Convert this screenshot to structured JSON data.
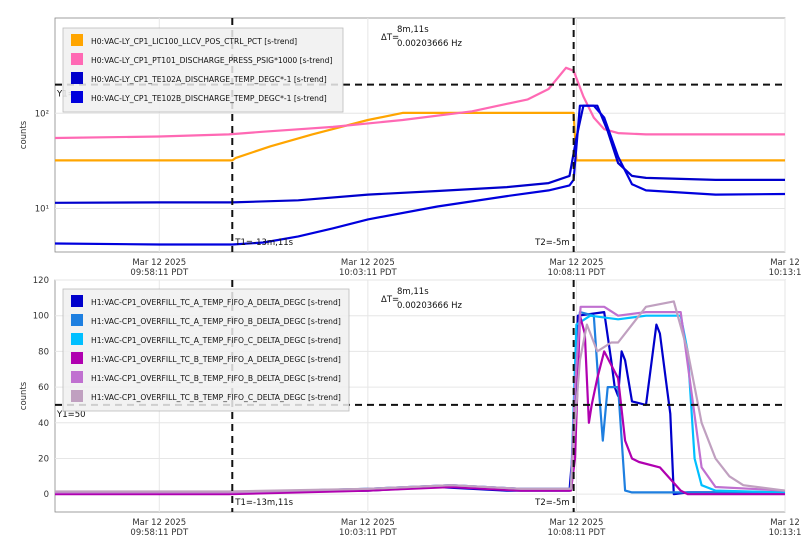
{
  "chart_data": [
    {
      "type": "line",
      "ylabel": "counts",
      "yscale": "log",
      "ylim": [
        3.5,
        1000
      ],
      "y_ticks": [
        {
          "value": 10,
          "label": "10¹"
        },
        {
          "value": 100,
          "label": "10²"
        }
      ],
      "x_ticks": [
        {
          "t": 0,
          "line1": "Mar 12 2025",
          "line2": "09:58:11 PDT"
        },
        {
          "t": 300,
          "line1": "Mar 12 2025",
          "line2": "10:03:11 PDT"
        },
        {
          "t": 600,
          "line1": "Mar 12 2025",
          "line2": "10:08:11 PDT"
        },
        {
          "t": 900,
          "line1": "Mar 12",
          "line2": "10:13:1"
        }
      ],
      "xlim": [
        -150,
        900
      ],
      "cursor_y": {
        "label": "Y1=",
        "value": 200
      },
      "cursor_t1": {
        "label": "T1=-13m,11s",
        "t": 105
      },
      "cursor_t2": {
        "label": "T2=-5m",
        "t": 596
      },
      "delta": {
        "label": "ΔT=",
        "line1": "8m,11s",
        "line2": "0.00203666 Hz"
      },
      "series": [
        {
          "name": "H0:VAC-LY_CP1_LIC100_LLCV_POS_CTRL_PCT [s-trend]",
          "color": "#ffa500",
          "points": [
            [
              -150,
              32
            ],
            [
              105,
              32
            ],
            [
              110,
              34
            ],
            [
              160,
              45
            ],
            [
              220,
              60
            ],
            [
              300,
              85
            ],
            [
              350,
              101
            ],
            [
              440,
              101
            ],
            [
              596,
              101
            ],
            [
              600,
              32
            ],
            [
              900,
              32
            ]
          ]
        },
        {
          "name": "H0:VAC-LY_CP1_PT101_DISCHARGE_PRESS_PSIG*1000 [s-trend]",
          "color": "#ff69b4",
          "points": [
            [
              -150,
              55
            ],
            [
              0,
              57
            ],
            [
              100,
              60
            ],
            [
              150,
              64
            ],
            [
              250,
              72
            ],
            [
              350,
              85
            ],
            [
              450,
              105
            ],
            [
              530,
              140
            ],
            [
              560,
              180
            ],
            [
              585,
              300
            ],
            [
              596,
              280
            ],
            [
              610,
              150
            ],
            [
              625,
              90
            ],
            [
              640,
              68
            ],
            [
              660,
              62
            ],
            [
              700,
              60
            ],
            [
              800,
              60
            ],
            [
              900,
              60
            ]
          ]
        },
        {
          "name": "H0:VAC-LY_CP1_TE102A_DISCHARGE_TEMP_DEGC*-1 [s-trend]",
          "color": "#0000cc",
          "points": [
            [
              -150,
              11.5
            ],
            [
              0,
              11.6
            ],
            [
              105,
              11.6
            ],
            [
              200,
              12.2
            ],
            [
              300,
              14
            ],
            [
              400,
              15.3
            ],
            [
              500,
              16.8
            ],
            [
              560,
              18.5
            ],
            [
              590,
              22
            ],
            [
              600,
              55
            ],
            [
              610,
              120
            ],
            [
              630,
              120
            ],
            [
              645,
              65
            ],
            [
              660,
              30
            ],
            [
              680,
              22
            ],
            [
              700,
              21
            ],
            [
              800,
              20
            ],
            [
              900,
              20
            ]
          ]
        },
        {
          "name": "H0:VAC-LY_CP1_TE102B_DISCHARGE_TEMP_DEGC*-1 [s-trend]",
          "color": "#0000dd",
          "points": [
            [
              -150,
              4.3
            ],
            [
              0,
              4.2
            ],
            [
              105,
              4.2
            ],
            [
              150,
              4.4
            ],
            [
              200,
              5.1
            ],
            [
              250,
              6.2
            ],
            [
              300,
              7.7
            ],
            [
              400,
              10.5
            ],
            [
              500,
              13.5
            ],
            [
              560,
              15.5
            ],
            [
              590,
              17.5
            ],
            [
              596,
              20
            ],
            [
              605,
              120
            ],
            [
              625,
              120
            ],
            [
              640,
              90
            ],
            [
              660,
              35
            ],
            [
              680,
              18
            ],
            [
              700,
              15.5
            ],
            [
              800,
              14
            ],
            [
              900,
              14.2
            ]
          ]
        }
      ]
    },
    {
      "type": "line",
      "ylabel": "counts",
      "ylim": [
        -10,
        120
      ],
      "y_ticks": [
        0,
        20,
        40,
        60,
        80,
        100,
        120
      ],
      "x_ticks": [
        {
          "t": 0,
          "line1": "Mar 12 2025",
          "line2": "09:58:11 PDT"
        },
        {
          "t": 300,
          "line1": "Mar 12 2025",
          "line2": "10:03:11 PDT"
        },
        {
          "t": 600,
          "line1": "Mar 12 2025",
          "line2": "10:08:11 PDT"
        },
        {
          "t": 900,
          "line1": "Mar 12",
          "line2": "10:13:1"
        }
      ],
      "xlim": [
        -150,
        900
      ],
      "cursor_y": {
        "label": "Y1=50",
        "value": 50
      },
      "cursor_t1": {
        "label": "T1=-13m,11s",
        "t": 105
      },
      "cursor_t2": {
        "label": "T2=-5m",
        "t": 596
      },
      "delta": {
        "label": "ΔT=",
        "line1": "8m,11s",
        "line2": "0.00203666 Hz"
      },
      "series": [
        {
          "name": "H1:VAC-CP1_OVERFILL_TC_A_TEMP_FIFO_A_DELTA_DEGC [s-trend]",
          "color": "#0000cc",
          "points": [
            [
              -150,
              1
            ],
            [
              100,
              1
            ],
            [
              300,
              2
            ],
            [
              400,
              4
            ],
            [
              500,
              2
            ],
            [
              590,
              2
            ],
            [
              598,
              40
            ],
            [
              602,
              100
            ],
            [
              640,
              102
            ],
            [
              650,
              75
            ],
            [
              655,
              60
            ],
            [
              660,
              55
            ],
            [
              665,
              80
            ],
            [
              670,
              75
            ],
            [
              680,
              52
            ],
            [
              700,
              50
            ],
            [
              715,
              95
            ],
            [
              720,
              90
            ],
            [
              730,
              60
            ],
            [
              735,
              45
            ],
            [
              740,
              0
            ],
            [
              760,
              1
            ],
            [
              900,
              1
            ]
          ]
        },
        {
          "name": "H1:VAC-CP1_OVERFILL_TC_A_TEMP_FIFO_B_DELTA_DEGC [s-trend]",
          "color": "#1e7fe0",
          "points": [
            [
              -150,
              1
            ],
            [
              100,
              1
            ],
            [
              300,
              3
            ],
            [
              420,
              5
            ],
            [
              520,
              3
            ],
            [
              592,
              3
            ],
            [
              598,
              60
            ],
            [
              605,
              102
            ],
            [
              625,
              100
            ],
            [
              632,
              60
            ],
            [
              638,
              30
            ],
            [
              645,
              60
            ],
            [
              660,
              60
            ],
            [
              670,
              2
            ],
            [
              680,
              1
            ],
            [
              900,
              1
            ]
          ]
        },
        {
          "name": "H1:VAC-CP1_OVERFILL_TC_A_TEMP_FIFO_C_DELTA_DEGC [s-trend]",
          "color": "#00bfff",
          "points": [
            [
              -150,
              1
            ],
            [
              100,
              1
            ],
            [
              300,
              3
            ],
            [
              420,
              5
            ],
            [
              520,
              3
            ],
            [
              592,
              3
            ],
            [
              600,
              95
            ],
            [
              620,
              100
            ],
            [
              660,
              98
            ],
            [
              700,
              100
            ],
            [
              750,
              100
            ],
            [
              760,
              80
            ],
            [
              770,
              20
            ],
            [
              780,
              5
            ],
            [
              800,
              2
            ],
            [
              900,
              1
            ]
          ]
        },
        {
          "name": "H1:VAC-CP1_OVERFILL_TC_B_TEMP_FIFO_A_DELTA_DEGC [s-trend]",
          "color": "#b000b0",
          "points": [
            [
              -150,
              0
            ],
            [
              100,
              0
            ],
            [
              300,
              2
            ],
            [
              420,
              4
            ],
            [
              520,
              2
            ],
            [
              592,
              2
            ],
            [
              598,
              20
            ],
            [
              605,
              100
            ],
            [
              612,
              90
            ],
            [
              618,
              40
            ],
            [
              622,
              50
            ],
            [
              630,
              65
            ],
            [
              640,
              80
            ],
            [
              660,
              65
            ],
            [
              670,
              30
            ],
            [
              680,
              20
            ],
            [
              690,
              18
            ],
            [
              720,
              15
            ],
            [
              750,
              2
            ],
            [
              760,
              0
            ],
            [
              900,
              0
            ]
          ]
        },
        {
          "name": "H1:VAC-CP1_OVERFILL_TC_B_TEMP_FIFO_B_DELTA_DEGC [s-trend]",
          "color": "#c070d0",
          "points": [
            [
              -150,
              1
            ],
            [
              100,
              1
            ],
            [
              300,
              3
            ],
            [
              420,
              5
            ],
            [
              520,
              3
            ],
            [
              592,
              3
            ],
            [
              598,
              60
            ],
            [
              606,
              105
            ],
            [
              640,
              105
            ],
            [
              660,
              100
            ],
            [
              700,
              102
            ],
            [
              750,
              102
            ],
            [
              780,
              15
            ],
            [
              800,
              4
            ],
            [
              900,
              2
            ]
          ]
        },
        {
          "name": "H1:VAC-CP1_OVERFILL_TC_B_TEMP_FIFO_C_DELTA_DEGC [s-trend]",
          "color": "#c0a0c0",
          "points": [
            [
              -150,
              1.5
            ],
            [
              100,
              1.5
            ],
            [
              300,
              3
            ],
            [
              420,
              5
            ],
            [
              520,
              3
            ],
            [
              592,
              3
            ],
            [
              598,
              40
            ],
            [
              605,
              75
            ],
            [
              615,
              95
            ],
            [
              630,
              80
            ],
            [
              650,
              85
            ],
            [
              660,
              85
            ],
            [
              700,
              105
            ],
            [
              740,
              108
            ],
            [
              760,
              80
            ],
            [
              780,
              40
            ],
            [
              800,
              20
            ],
            [
              820,
              10
            ],
            [
              840,
              5
            ],
            [
              900,
              2
            ]
          ]
        }
      ]
    }
  ]
}
